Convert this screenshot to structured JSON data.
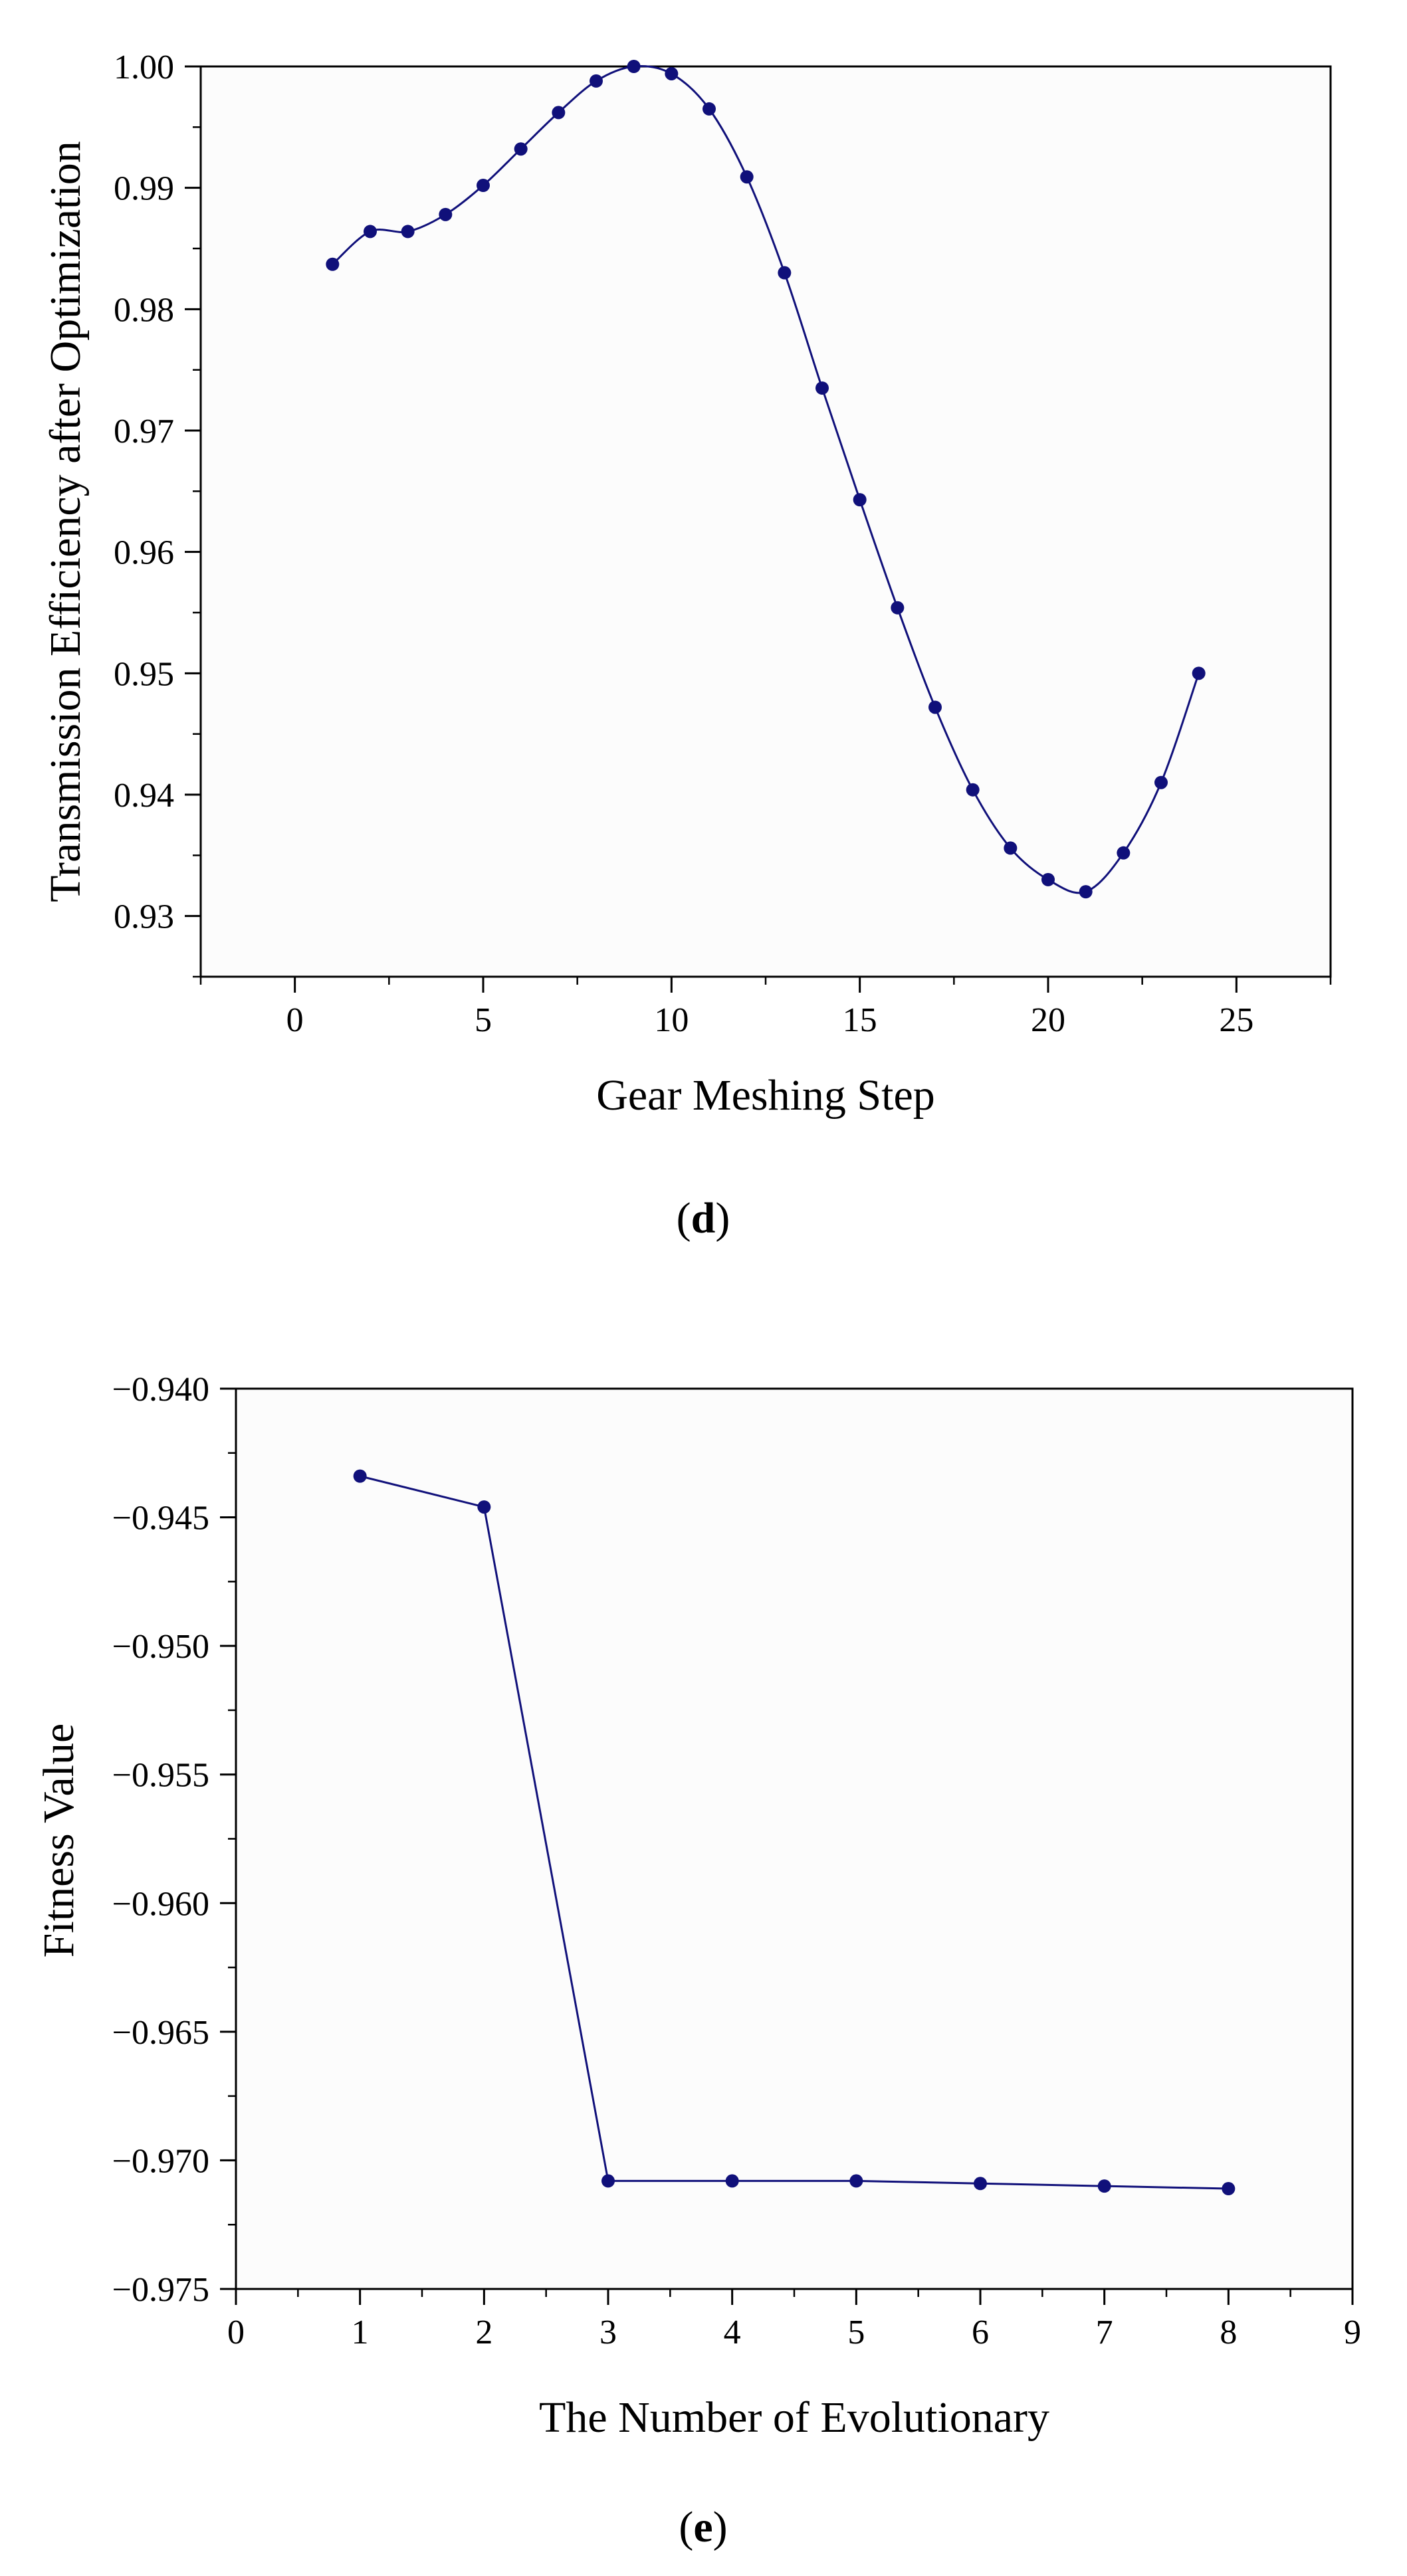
{
  "colors": {
    "series": "#10107a",
    "axis": "#000000",
    "plot_bg": "#fcfcfc"
  },
  "chart_data": [
    {
      "type": "line",
      "panel": "d",
      "caption": {
        "open": "(",
        "letter": "d",
        "close": ")"
      },
      "title": "",
      "xlabel": "Gear Meshing Step",
      "ylabel": "Transmission Efficiency after Optimization",
      "xlim": [
        -2.5,
        27.5
      ],
      "ylim": [
        0.925,
        1.0
      ],
      "xticks": [
        0,
        5,
        10,
        15,
        20,
        25
      ],
      "xtick_labels": [
        "0",
        "5",
        "10",
        "15",
        "20",
        "25"
      ],
      "yticks": [
        0.93,
        0.94,
        0.95,
        0.96,
        0.97,
        0.98,
        0.99,
        1.0
      ],
      "ytick_labels": [
        "0.93",
        "0.94",
        "0.95",
        "0.96",
        "0.97",
        "0.98",
        "0.99",
        "1.00"
      ],
      "x_minor_step": 2.5,
      "y_minor_step": 0.005,
      "smooth": true,
      "grid": false,
      "series": [
        {
          "name": "Transmission Efficiency",
          "x": [
            1,
            2,
            3,
            4,
            5,
            6,
            7,
            8,
            9,
            10,
            11,
            12,
            13,
            14,
            15,
            16,
            17,
            18,
            19,
            20,
            21,
            22,
            23,
            24
          ],
          "y": [
            0.9837,
            0.9864,
            0.9864,
            0.9878,
            0.9902,
            0.9932,
            0.9962,
            0.9988,
            1.0,
            0.9994,
            0.9965,
            0.9909,
            0.983,
            0.9735,
            0.9643,
            0.9554,
            0.9472,
            0.9404,
            0.9356,
            0.933,
            0.932,
            0.9352,
            0.941,
            0.95
          ]
        }
      ]
    },
    {
      "type": "line",
      "panel": "e",
      "caption": {
        "open": "(",
        "letter": "e",
        "close": ")"
      },
      "title": "",
      "xlabel": "The Number of Evolutionary",
      "ylabel": "Fitness Value",
      "xlim": [
        0,
        9
      ],
      "ylim": [
        -0.975,
        -0.94
      ],
      "xticks": [
        0,
        1,
        2,
        3,
        4,
        5,
        6,
        7,
        8,
        9
      ],
      "xtick_labels": [
        "0",
        "1",
        "2",
        "3",
        "4",
        "5",
        "6",
        "7",
        "8",
        "9"
      ],
      "yticks": [
        -0.975,
        -0.97,
        -0.965,
        -0.96,
        -0.955,
        -0.95,
        -0.945,
        -0.94
      ],
      "ytick_labels": [
        "−0.975",
        "−0.970",
        "−0.965",
        "−0.960",
        "−0.955",
        "−0.950",
        "−0.945",
        "−0.940"
      ],
      "x_minor_step": 0.5,
      "y_minor_step": 0.0025,
      "smooth": false,
      "grid": false,
      "series": [
        {
          "name": "Fitness Value",
          "x": [
            1,
            2,
            3,
            4,
            5,
            6,
            7,
            8
          ],
          "y": [
            -0.9434,
            -0.9446,
            -0.9708,
            -0.9708,
            -0.9708,
            -0.9709,
            -0.971,
            -0.9711
          ]
        }
      ]
    }
  ]
}
